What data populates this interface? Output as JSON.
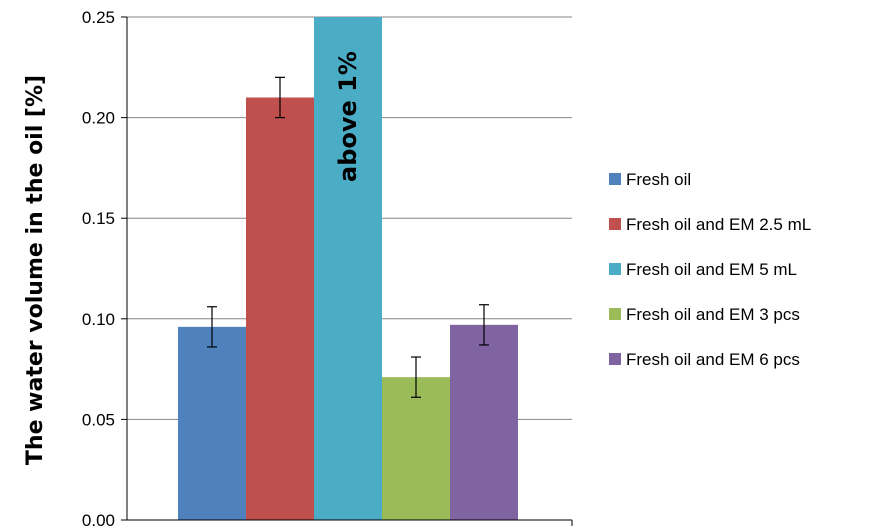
{
  "chart_data": {
    "type": "bar",
    "title": "",
    "xlabel": "",
    "ylabel": "The water volume in the oil [%]",
    "ylim": [
      0,
      0.25
    ],
    "yticks": [
      "0.00",
      "0.05",
      "0.10",
      "0.15",
      "0.20",
      "0.25"
    ],
    "grid": true,
    "legend_position": "right",
    "series": [
      {
        "name": "Fresh oil",
        "value": 0.096,
        "error": 0.01,
        "color": "#4F81BD"
      },
      {
        "name": "Fresh oil and EM 2.5 mL",
        "value": 0.21,
        "error": 0.01,
        "color": "#C0504D"
      },
      {
        "name": "Fresh oil and EM 5 mL",
        "value": 0.25,
        "error": null,
        "color": "#4BACC6",
        "annotation": "above 1%"
      },
      {
        "name": "Fresh oil and EM 3 pcs",
        "value": 0.071,
        "error": 0.01,
        "color": "#9BBB59"
      },
      {
        "name": "Fresh oil and EM 6 pcs",
        "value": 0.097,
        "error": 0.01,
        "color": "#8064A2"
      }
    ]
  }
}
